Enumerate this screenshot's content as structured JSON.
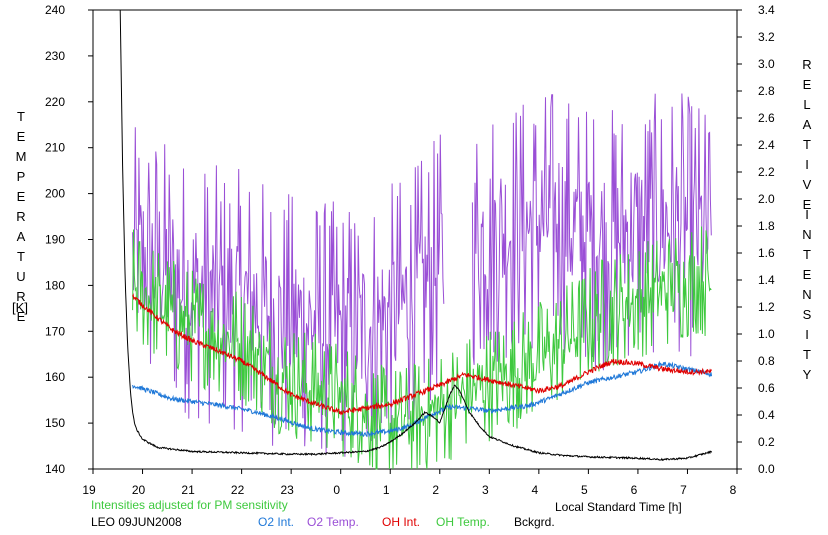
{
  "chart_data": {
    "type": "line",
    "left_axis_label": "TEMPERATURE",
    "left_axis_unit": "[K]",
    "right_axis_label_line1": "RELATIVE",
    "right_axis_label_line2": "INTENSITY",
    "xlabel": "Local Standard Time [h]",
    "note": "Intensities adjusted for PM sensitivity",
    "station_date": "LEO 09JUN2008",
    "x_ticks": [
      "19",
      "20",
      "21",
      "22",
      "23",
      "0",
      "1",
      "2",
      "3",
      "4",
      "5",
      "6",
      "7",
      "8"
    ],
    "y_left_ticks": [
      "140",
      "150",
      "160",
      "170",
      "180",
      "190",
      "200",
      "210",
      "220",
      "230",
      "240"
    ],
    "y_right_ticks": [
      "0.0",
      "0.2",
      "0.4",
      "0.6",
      "0.8",
      "1.0",
      "1.2",
      "1.4",
      "1.6",
      "1.8",
      "2.0",
      "2.2",
      "2.4",
      "2.6",
      "2.8",
      "3.0",
      "3.2",
      "3.4"
    ],
    "xlim": [
      19,
      32
    ],
    "ylim_left": [
      140,
      240
    ],
    "ylim_right": [
      0,
      3.4
    ],
    "series": [
      {
        "name": "O2 Int.",
        "axis": "right",
        "color": "#1f78d8",
        "style": "noisy",
        "x": [
          19.8,
          20.2,
          20.6,
          21.0,
          21.6,
          22.2,
          22.8,
          23.4,
          24.0,
          24.5,
          25.0,
          25.4,
          25.8,
          26.2,
          26.6,
          27.0,
          27.4,
          27.8,
          28.2,
          28.6,
          29.0,
          29.5,
          30.0,
          30.5,
          31.0,
          31.5
        ],
        "values": [
          0.62,
          0.57,
          0.52,
          0.5,
          0.47,
          0.43,
          0.37,
          0.3,
          0.27,
          0.26,
          0.28,
          0.32,
          0.4,
          0.46,
          0.45,
          0.43,
          0.45,
          0.47,
          0.52,
          0.58,
          0.64,
          0.68,
          0.72,
          0.78,
          0.74,
          0.7
        ],
        "noise": 0.018
      },
      {
        "name": "O2 Temp.",
        "axis": "left",
        "color": "#9a4fd6",
        "style": "spiky",
        "x": [
          19.8,
          20.3,
          20.8,
          21.3,
          21.8,
          22.3,
          22.8,
          23.3,
          23.8,
          24.3,
          24.8,
          25.3,
          25.7,
          26.0,
          26.4,
          26.8,
          27.3,
          27.8,
          28.3,
          28.8,
          29.3,
          29.8,
          30.3,
          30.8,
          31.2,
          31.5
        ],
        "values": [
          186,
          185,
          180,
          178,
          177,
          176,
          172,
          172,
          170,
          170,
          172,
          176,
          180,
          185,
          190,
          190,
          192,
          193,
          195,
          192,
          190,
          192,
          193,
          194,
          192,
          190
        ],
        "noise": 18,
        "gaps": [
          [
            26.1,
            26.65
          ]
        ]
      },
      {
        "name": "OH Int.",
        "axis": "right",
        "color": "#e00000",
        "style": "noisy",
        "x": [
          19.8,
          20.2,
          20.6,
          21.0,
          21.5,
          22.0,
          22.5,
          23.0,
          23.5,
          24.0,
          24.5,
          25.0,
          25.5,
          26.0,
          26.5,
          27.0,
          27.5,
          28.0,
          28.5,
          29.0,
          29.5,
          30.0,
          30.5,
          31.0,
          31.5
        ],
        "values": [
          1.28,
          1.15,
          1.03,
          0.95,
          0.88,
          0.8,
          0.68,
          0.55,
          0.48,
          0.42,
          0.45,
          0.48,
          0.55,
          0.62,
          0.7,
          0.66,
          0.62,
          0.58,
          0.62,
          0.72,
          0.8,
          0.78,
          0.74,
          0.72,
          0.72
        ],
        "noise": 0.02
      },
      {
        "name": "OH Temp.",
        "axis": "left",
        "color": "#3ec93e",
        "style": "spiky",
        "x": [
          19.8,
          20.3,
          20.8,
          21.3,
          21.8,
          22.3,
          22.8,
          23.3,
          23.8,
          24.3,
          24.8,
          25.3,
          25.8,
          26.3,
          26.8,
          27.3,
          27.8,
          28.3,
          28.8,
          29.3,
          29.8,
          30.3,
          30.8,
          31.2,
          31.5
        ],
        "values": [
          180,
          176,
          172,
          170,
          168,
          165,
          160,
          158,
          156,
          154,
          150,
          150,
          152,
          155,
          158,
          160,
          163,
          166,
          170,
          174,
          176,
          178,
          180,
          182,
          180
        ],
        "noise": 8
      },
      {
        "name": "Bckgrd.",
        "axis": "right",
        "color": "#000000",
        "style": "smooth",
        "x": [
          19.55,
          19.6,
          19.65,
          19.7,
          19.75,
          19.8,
          19.85,
          19.9,
          20.0,
          20.3,
          21.0,
          22.0,
          23.0,
          23.5,
          24.0,
          24.5,
          24.8,
          25.0,
          25.2,
          25.5,
          25.7,
          25.9,
          26.0,
          26.2,
          26.3,
          26.4,
          26.6,
          26.8,
          27.0,
          27.5,
          28.0,
          28.5,
          29.0,
          30.0,
          30.5,
          31.0,
          31.5
        ],
        "values": [
          3.4,
          2.2,
          1.4,
          0.9,
          0.6,
          0.42,
          0.32,
          0.28,
          0.22,
          0.16,
          0.13,
          0.12,
          0.11,
          0.11,
          0.12,
          0.13,
          0.16,
          0.2,
          0.25,
          0.34,
          0.42,
          0.38,
          0.34,
          0.55,
          0.62,
          0.58,
          0.42,
          0.32,
          0.24,
          0.17,
          0.12,
          0.1,
          0.09,
          0.08,
          0.07,
          0.08,
          0.13
        ],
        "noise": 0.006
      }
    ]
  }
}
